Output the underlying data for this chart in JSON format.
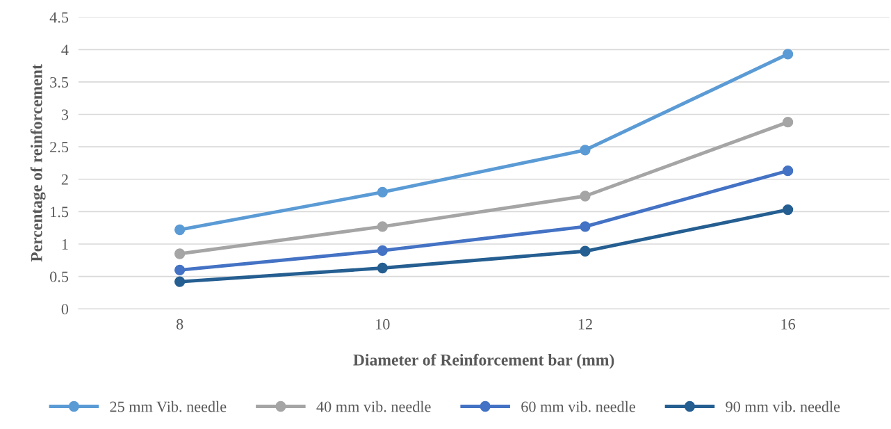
{
  "chart_data": {
    "type": "line",
    "xlabel": "Diameter of Reinforcement bar (mm)",
    "ylabel": "Percentage of reinforcement",
    "categories": [
      "8",
      "10",
      "12",
      "16"
    ],
    "series": [
      {
        "name": "25 mm Vib. needle",
        "color": "#5b9bd5",
        "values": [
          1.22,
          1.8,
          2.45,
          3.93
        ]
      },
      {
        "name": "40 mm vib. needle",
        "color": "#a5a5a5",
        "values": [
          0.85,
          1.27,
          1.74,
          2.88
        ]
      },
      {
        "name": "60 mm vib. needle",
        "color": "#4472c4",
        "values": [
          0.6,
          0.9,
          1.27,
          2.13
        ]
      },
      {
        "name": "90 mm vib. needle",
        "color": "#255e91",
        "values": [
          0.42,
          0.63,
          0.89,
          1.53
        ]
      }
    ],
    "ylim": [
      0,
      4.5
    ],
    "yticks": [
      0,
      0.5,
      1,
      1.5,
      2,
      2.5,
      3,
      3.5,
      4,
      4.5
    ],
    "grid": "y",
    "legend": "bottom",
    "marker": "circle",
    "line_style": "solid"
  }
}
